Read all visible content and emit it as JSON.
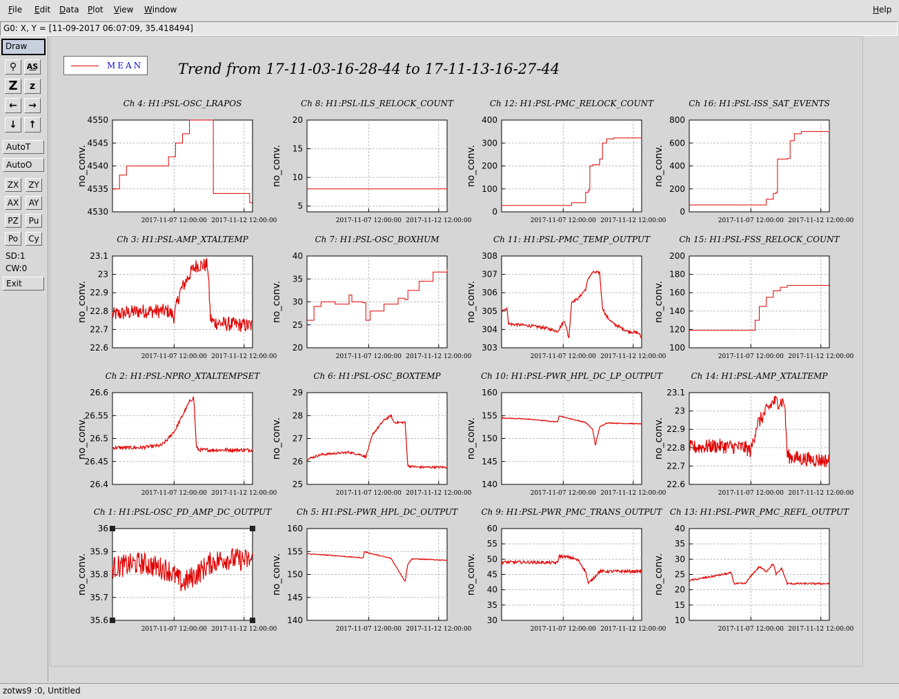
{
  "menubar": {
    "items": [
      {
        "first": "F",
        "rest": "ile"
      },
      {
        "first": "E",
        "rest": "dit"
      },
      {
        "first": "D",
        "rest": "ata"
      },
      {
        "first": "P",
        "rest": "lot"
      },
      {
        "first": "V",
        "rest": "iew"
      },
      {
        "first": "W",
        "rest": "indow"
      }
    ],
    "help": {
      "first": "H",
      "rest": "elp"
    }
  },
  "status": {
    "coords": "G0: X, Y = [11-09-2017 06:07:09, 35.418494]"
  },
  "toolbar": {
    "draw": "Draw",
    "icons": [
      "search-icon",
      "text-icon",
      "zoom-z-large-icon",
      "zoom-z-small-icon",
      "arrow-left-icon",
      "arrow-right-icon",
      "arrow-down-icon",
      "arrow-up-icon"
    ],
    "icon_glyphs": [
      "⚲",
      "A͟S",
      "Z",
      "z",
      "←",
      "→",
      "↓",
      "↑"
    ],
    "autot": "AutoT",
    "autoo": "AutoO",
    "pairs": [
      [
        "ZX",
        "ZY"
      ],
      [
        "AX",
        "AY"
      ],
      [
        "PZ",
        "Pu"
      ],
      [
        "Po",
        "Cy"
      ]
    ],
    "sd": "SD:1",
    "cw": "CW:0",
    "exit": "Exit"
  },
  "legend": {
    "label": "MEAN",
    "color": "#e00000"
  },
  "title": "Trend from 17-11-03-16-28-44 to 17-11-13-16-27-44",
  "bottom_status": "zotws9 :0, Untitled",
  "chart_data": [
    {
      "type": "line",
      "title": "Ch 4: H1:PSL-OSC_LRAPOS",
      "ylabel": "no_conv.",
      "yticks": [
        "4530",
        "4535",
        "4540",
        "4545",
        "4550"
      ],
      "ylim": [
        4530,
        4550
      ],
      "xticks": [
        "2017-11-07 12:00:00",
        "2017-11-12 12:00:00"
      ],
      "x": [
        0,
        0.05,
        0.1,
        0.2,
        0.28,
        0.4,
        0.45,
        0.5,
        0.55,
        0.6,
        0.7,
        0.72,
        0.75,
        0.8,
        0.9,
        0.98,
        1
      ],
      "y": [
        4535,
        4538,
        4540,
        4540,
        4540,
        4542,
        4545,
        4547,
        4550,
        4550,
        4550,
        4534,
        4534,
        4534,
        4534,
        4532,
        4532
      ]
    },
    {
      "type": "line",
      "title": "Ch 8: H1:PSL-ILS_RELOCK_COUNT",
      "ylabel": "no_conv.",
      "yticks": [
        "5",
        "10",
        "15",
        "20"
      ],
      "ylim": [
        4,
        20
      ],
      "xticks": [
        "2017-11-07 12:00:00",
        "2017-11-12 12:00:00"
      ],
      "x": [
        0,
        1
      ],
      "y": [
        8,
        8
      ]
    },
    {
      "type": "line",
      "title": "Ch 12: H1:PSL-PMC_RELOCK_COUNT",
      "ylabel": "no_conv.",
      "yticks": [
        "0",
        "100",
        "200",
        "300",
        "400"
      ],
      "ylim": [
        0,
        400
      ],
      "xticks": [
        "2017-11-07 12:00:00",
        "2017-11-12 12:00:00"
      ],
      "x": [
        0,
        0.3,
        0.45,
        0.5,
        0.6,
        0.62,
        0.63,
        0.65,
        0.7,
        0.72,
        0.75,
        0.8,
        1
      ],
      "y": [
        28,
        28,
        28,
        40,
        85,
        95,
        200,
        205,
        230,
        300,
        318,
        322,
        324
      ]
    },
    {
      "type": "line",
      "title": "Ch 16: H1:PSL-ISS_SAT_EVENTS",
      "ylabel": "no_conv.",
      "yticks": [
        "0",
        "200",
        "400",
        "600",
        "800"
      ],
      "ylim": [
        0,
        800
      ],
      "xticks": [
        "2017-11-07 12:00:00",
        "2017-11-12 12:00:00"
      ],
      "x": [
        0,
        0.4,
        0.45,
        0.55,
        0.6,
        0.62,
        0.63,
        0.7,
        0.72,
        0.75,
        0.8,
        1
      ],
      "y": [
        60,
        60,
        60,
        110,
        160,
        170,
        460,
        465,
        620,
        680,
        700,
        715
      ]
    },
    {
      "type": "line",
      "title": "Ch 3: H1:PSL-AMP_XTALTEMP",
      "ylabel": "no_conv.",
      "yticks": [
        "22.6",
        "22.7",
        "22.8",
        "22.9",
        "23",
        "23.1"
      ],
      "ylim": [
        22.6,
        23.1
      ],
      "xticks": [
        "2017-11-07 12:00:00",
        "2017-11-12 12:00:00"
      ],
      "x": [
        0,
        0.2,
        0.4,
        0.44,
        0.48,
        0.55,
        0.6,
        0.68,
        0.7,
        0.72,
        0.8,
        1
      ],
      "y": [
        22.78,
        22.8,
        22.8,
        22.77,
        22.9,
        23.0,
        23.05,
        23.05,
        22.76,
        22.74,
        22.73,
        22.72
      ],
      "noise": 0.04
    },
    {
      "type": "line",
      "title": "Ch 7: H1:PSL-OSC_BOXHUM",
      "ylabel": "no_conv.",
      "yticks": [
        "20",
        "25",
        "30",
        "35",
        "40"
      ],
      "ylim": [
        20,
        40
      ],
      "xticks": [
        "2017-11-07 12:00:00",
        "2017-11-12 12:00:00"
      ],
      "x": [
        0,
        0.05,
        0.1,
        0.2,
        0.3,
        0.32,
        0.4,
        0.42,
        0.45,
        0.55,
        0.65,
        0.7,
        0.72,
        0.8,
        0.9,
        1
      ],
      "y": [
        26,
        29,
        30,
        29.5,
        31.5,
        30,
        29.8,
        26,
        28,
        29.5,
        30.8,
        30.5,
        32.5,
        34.5,
        36.5,
        37.2
      ]
    },
    {
      "type": "line",
      "title": "Ch 11: H1:PSL-PMC_TEMP_OUTPUT",
      "ylabel": "no_conv.",
      "yticks": [
        "303",
        "304",
        "305",
        "306",
        "307",
        "308"
      ],
      "ylim": [
        303,
        308
      ],
      "xticks": [
        "2017-11-07 12:00:00",
        "2017-11-12 12:00:00"
      ],
      "x": [
        0,
        0.04,
        0.05,
        0.2,
        0.3,
        0.35,
        0.4,
        0.45,
        0.48,
        0.5,
        0.55,
        0.6,
        0.62,
        0.65,
        0.7,
        0.72,
        0.75,
        0.8,
        0.9,
        0.98,
        1
      ],
      "y": [
        305.1,
        305.1,
        304.3,
        304.2,
        304.1,
        304.0,
        303.9,
        304.5,
        303.5,
        305.5,
        305.7,
        306.2,
        306.8,
        307.1,
        307.1,
        305.2,
        304.7,
        304.3,
        303.9,
        303.8,
        303.5
      ],
      "noise": 0.08
    },
    {
      "type": "line",
      "title": "Ch 15: H1:PSL-FSS_RELOCK_COUNT",
      "ylabel": "no_conv.",
      "yticks": [
        "100",
        "120",
        "140",
        "160",
        "180",
        "200"
      ],
      "ylim": [
        100,
        200
      ],
      "xticks": [
        "2017-11-07 12:00:00",
        "2017-11-12 12:00:00"
      ],
      "x": [
        0,
        0.44,
        0.47,
        0.5,
        0.55,
        0.6,
        0.65,
        0.7,
        1
      ],
      "y": [
        119,
        119,
        130,
        145,
        155,
        162,
        166,
        168,
        168
      ]
    },
    {
      "type": "line",
      "title": "Ch 2: H1:PSL-NPRO_XTALTEMPSET",
      "ylabel": "no_conv.",
      "yticks": [
        "26.4",
        "26.45",
        "26.5",
        "26.55",
        "26.6"
      ],
      "ylim": [
        26.4,
        26.6
      ],
      "xticks": [
        "2017-11-07 12:00:00",
        "2017-11-12 12:00:00"
      ],
      "x": [
        0,
        0.2,
        0.35,
        0.4,
        0.45,
        0.5,
        0.55,
        0.58,
        0.6,
        0.62,
        0.7,
        1
      ],
      "y": [
        26.48,
        26.48,
        26.485,
        26.5,
        26.52,
        26.55,
        26.58,
        26.59,
        26.48,
        26.475,
        26.475,
        26.475
      ],
      "noise": 0.004
    },
    {
      "type": "line",
      "title": "Ch 6: H1:PSL-OSC_BOXTEMP",
      "ylabel": "no_conv.",
      "yticks": [
        "25",
        "26",
        "27",
        "28",
        "29"
      ],
      "ylim": [
        25,
        29
      ],
      "xticks": [
        "2017-11-07 12:00:00",
        "2017-11-12 12:00:00"
      ],
      "x": [
        0,
        0.1,
        0.2,
        0.3,
        0.38,
        0.42,
        0.47,
        0.55,
        0.6,
        0.62,
        0.7,
        0.72,
        0.8,
        1
      ],
      "y": [
        26.1,
        26.3,
        26.35,
        26.4,
        26.3,
        26.2,
        27.2,
        27.8,
        28.0,
        27.7,
        27.7,
        25.8,
        25.75,
        25.75
      ],
      "noise": 0.05
    },
    {
      "type": "line",
      "title": "Ch 10: H1:PSL-PWR_HPL_DC_LP_OUTPUT",
      "ylabel": "no_conv.",
      "yticks": [
        "140",
        "145",
        "150",
        "155",
        "160"
      ],
      "ylim": [
        140,
        160
      ],
      "xticks": [
        "2017-11-07 12:00:00",
        "2017-11-12 12:00:00"
      ],
      "x": [
        0,
        0.2,
        0.4,
        0.41,
        0.45,
        0.6,
        0.65,
        0.67,
        0.7,
        0.75,
        1
      ],
      "y": [
        154.5,
        154.2,
        153.6,
        155,
        154.6,
        153.5,
        152,
        148.5,
        152.5,
        153.4,
        153.2
      ],
      "noise": 0.1
    },
    {
      "type": "line",
      "title": "Ch 14: H1:PSL-AMP_XTALTEMP",
      "ylabel": "no_conv.",
      "yticks": [
        "22.6",
        "22.7",
        "22.8",
        "22.9",
        "23",
        "23.1"
      ],
      "ylim": [
        22.6,
        23.1
      ],
      "xticks": [
        "2017-11-07 12:00:00",
        "2017-11-12 12:00:00"
      ],
      "x": [
        0,
        0.2,
        0.4,
        0.44,
        0.48,
        0.55,
        0.6,
        0.68,
        0.7,
        0.72,
        0.8,
        1
      ],
      "y": [
        22.8,
        22.81,
        22.8,
        22.78,
        22.92,
        23.0,
        23.05,
        23.05,
        22.76,
        22.75,
        22.74,
        22.73
      ],
      "noise": 0.04
    },
    {
      "type": "line",
      "title": "Ch 1: H1:PSL-OSC_PD_AMP_DC_OUTPUT",
      "ylabel": "no_conv.",
      "yticks": [
        "35.6",
        "35.7",
        "35.8",
        "35.9",
        "36"
      ],
      "ylim": [
        35.6,
        36
      ],
      "xticks": [
        "2017-11-07 12:00:00",
        "2017-11-12 12:00:00"
      ],
      "x": [
        0,
        0.2,
        0.4,
        0.5,
        0.6,
        0.7,
        0.8,
        1
      ],
      "y": [
        35.83,
        35.85,
        35.82,
        35.76,
        35.8,
        35.85,
        35.87,
        35.86
      ],
      "noise": 0.05
    },
    {
      "type": "line",
      "title": "Ch 5: H1:PSL-PWR_HPL_DC_OUTPUT",
      "ylabel": "no_conv.",
      "yticks": [
        "140",
        "145",
        "150",
        "155",
        "160"
      ],
      "ylim": [
        140,
        160
      ],
      "xticks": [
        "2017-11-07 12:00:00",
        "2017-11-12 12:00:00"
      ],
      "x": [
        0,
        0.2,
        0.4,
        0.41,
        0.45,
        0.6,
        0.65,
        0.7,
        0.72,
        0.75,
        1
      ],
      "y": [
        154.5,
        154.1,
        153.6,
        155,
        154.6,
        153.5,
        151,
        148.5,
        152.3,
        153.4,
        153.1
      ],
      "noise": 0.1
    },
    {
      "type": "line",
      "title": "Ch 9: H1:PSL-PWR_PMC_TRANS_OUTPUT",
      "ylabel": "no_conv.",
      "yticks": [
        "30",
        "35",
        "40",
        "45",
        "50",
        "55",
        "60"
      ],
      "ylim": [
        30,
        60
      ],
      "xticks": [
        "2017-11-07 12:00:00",
        "2017-11-12 12:00:00"
      ],
      "x": [
        0,
        0.2,
        0.4,
        0.41,
        0.5,
        0.55,
        0.6,
        0.62,
        0.7,
        1
      ],
      "y": [
        49,
        49,
        48.8,
        51,
        50.5,
        49.5,
        46,
        42,
        46,
        46
      ],
      "noise": 0.5
    },
    {
      "type": "line",
      "title": "Ch 13: H1:PSL-PWR_PMC_REFL_OUTPUT",
      "ylabel": "no_conv.",
      "yticks": [
        "10",
        "15",
        "20",
        "25",
        "30",
        "35",
        "40"
      ],
      "ylim": [
        10,
        40
      ],
      "xticks": [
        "2017-11-07 12:00:00",
        "2017-11-12 12:00:00"
      ],
      "x": [
        0,
        0.3,
        0.32,
        0.4,
        0.45,
        0.5,
        0.55,
        0.6,
        0.62,
        0.66,
        0.7,
        1
      ],
      "y": [
        23,
        25.5,
        22,
        22,
        25,
        27.5,
        26,
        28.5,
        25,
        27,
        22,
        22
      ],
      "noise": 0.3
    }
  ]
}
